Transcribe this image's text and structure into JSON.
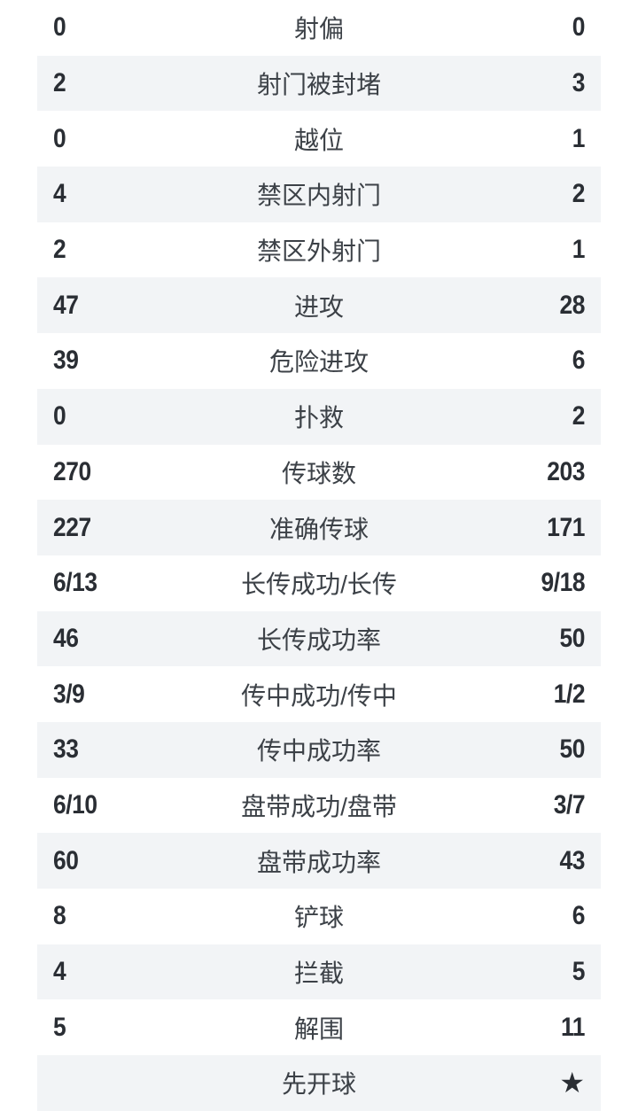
{
  "page": {
    "background_color": "#ffffff",
    "stripe_color": "#f2f4f6",
    "value_color": "#2a2e34",
    "label_color": "#3c4147",
    "kickoff_star_glyph": "★"
  },
  "stats": {
    "rows": [
      {
        "home": "0",
        "label": "射偏",
        "away": "0"
      },
      {
        "home": "2",
        "label": "射门被封堵",
        "away": "3"
      },
      {
        "home": "0",
        "label": "越位",
        "away": "1"
      },
      {
        "home": "4",
        "label": "禁区内射门",
        "away": "2"
      },
      {
        "home": "2",
        "label": "禁区外射门",
        "away": "1"
      },
      {
        "home": "47",
        "label": "进攻",
        "away": "28"
      },
      {
        "home": "39",
        "label": "危险进攻",
        "away": "6"
      },
      {
        "home": "0",
        "label": "扑救",
        "away": "2"
      },
      {
        "home": "270",
        "label": "传球数",
        "away": "203"
      },
      {
        "home": "227",
        "label": "准确传球",
        "away": "171"
      },
      {
        "home": "6/13",
        "label": "长传成功/长传",
        "away": "9/18"
      },
      {
        "home": "46",
        "label": "长传成功率",
        "away": "50"
      },
      {
        "home": "3/9",
        "label": "传中成功/传中",
        "away": "1/2"
      },
      {
        "home": "33",
        "label": "传中成功率",
        "away": "50"
      },
      {
        "home": "6/10",
        "label": "盘带成功/盘带",
        "away": "3/7"
      },
      {
        "home": "60",
        "label": "盘带成功率",
        "away": "43"
      },
      {
        "home": "8",
        "label": "铲球",
        "away": "6"
      },
      {
        "home": "4",
        "label": "拦截",
        "away": "5"
      },
      {
        "home": "5",
        "label": "解围",
        "away": "11"
      },
      {
        "home": "",
        "label": "先开球",
        "away": "★",
        "away_icon": "kickoff-star"
      }
    ]
  }
}
